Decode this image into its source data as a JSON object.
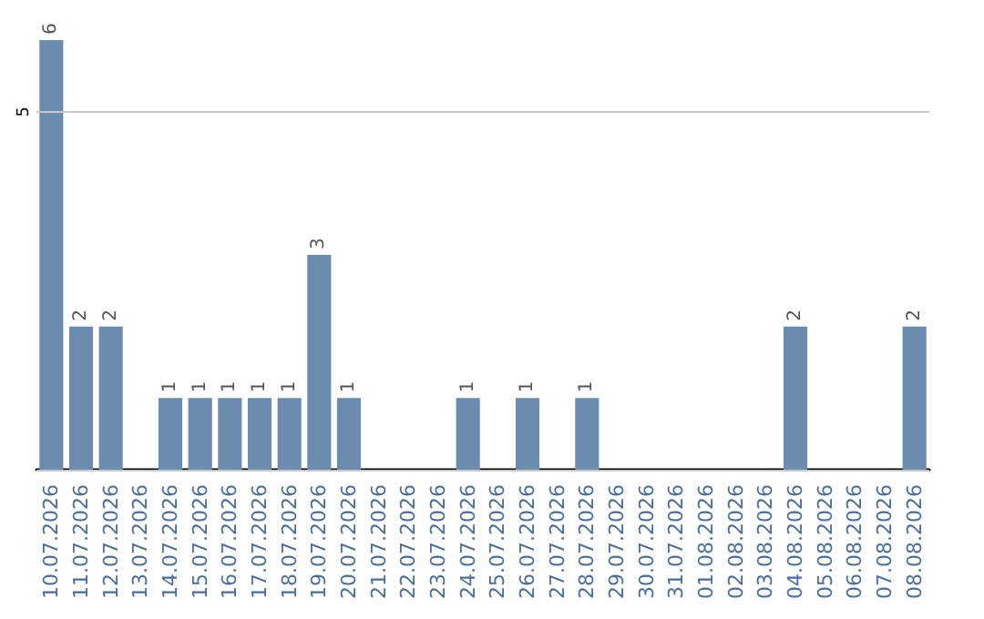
{
  "chart_data": {
    "type": "bar",
    "categories": [
      "10.07.2026",
      "11.07.2026",
      "12.07.2026",
      "13.07.2026",
      "14.07.2026",
      "15.07.2026",
      "16.07.2026",
      "17.07.2026",
      "18.07.2026",
      "19.07.2026",
      "20.07.2026",
      "21.07.2026",
      "22.07.2026",
      "23.07.2026",
      "24.07.2026",
      "25.07.2026",
      "26.07.2026",
      "27.07.2026",
      "28.07.2026",
      "29.07.2026",
      "30.07.2026",
      "31.07.2026",
      "01.08.2026",
      "02.08.2026",
      "03.08.2026",
      "04.08.2026",
      "05.08.2026",
      "06.08.2026",
      "07.08.2026",
      "08.08.2026"
    ],
    "values": [
      6,
      2,
      2,
      0,
      1,
      1,
      1,
      1,
      1,
      3,
      1,
      0,
      0,
      0,
      1,
      0,
      1,
      0,
      1,
      0,
      0,
      0,
      0,
      0,
      0,
      2,
      0,
      0,
      0,
      2
    ],
    "value_labels": [
      "6",
      "2",
      "2",
      null,
      "1",
      "1",
      "1",
      "1",
      "1",
      "3",
      "1",
      null,
      null,
      null,
      "1",
      null,
      "1",
      null,
      "1",
      null,
      null,
      null,
      null,
      null,
      null,
      "2",
      null,
      null,
      null,
      "2"
    ],
    "color": "#6b8cae",
    "ylim": [
      0,
      6
    ],
    "yticks": [
      {
        "value": 0,
        "label": null
      },
      5
    ],
    "grid": "y"
  }
}
